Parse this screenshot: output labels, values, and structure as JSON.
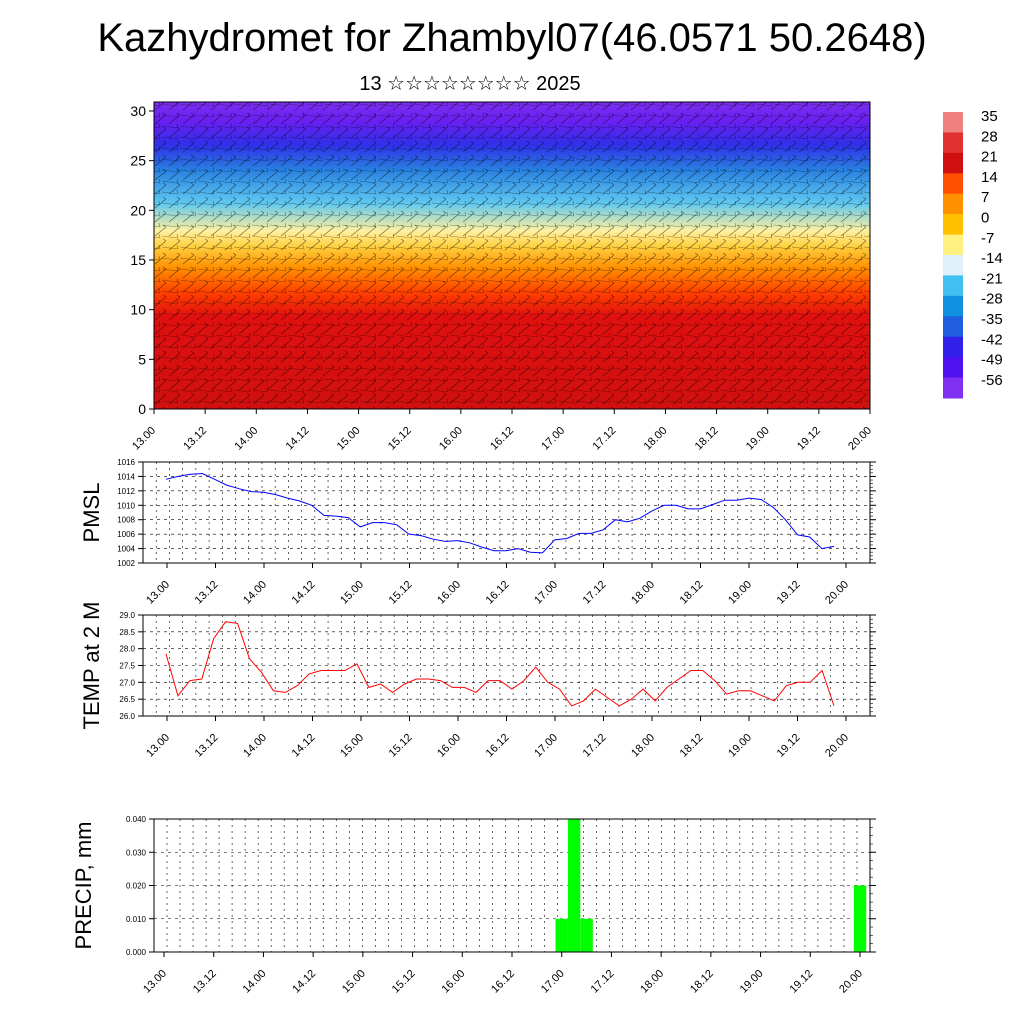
{
  "header": {
    "title": "Kazhydromet for Zhambyl07(46.0571 50.2648)",
    "subtitle": "13 ☆☆☆☆☆☆☆☆ 2025"
  },
  "colorbar": {
    "labels": [
      "35",
      "28",
      "21",
      "14",
      "7",
      "0",
      "-7",
      "-14",
      "-21",
      "-28",
      "-35",
      "-42",
      "-49",
      "-56"
    ],
    "colors": [
      "#f08080",
      "#e03030",
      "#d01010",
      "#ff5000",
      "#ff9000",
      "#ffc000",
      "#fff080",
      "#e0f0f8",
      "#40c0f0",
      "#1090e0",
      "#2060e0",
      "#3020e8",
      "#5010f0",
      "#8030f0"
    ]
  },
  "chart_data": [
    {
      "type": "heatmap",
      "title": "",
      "ylabel": "",
      "ylim": [
        0,
        30
      ],
      "y_ticks": [
        "0",
        "5",
        "10",
        "15",
        "20",
        "25",
        "30"
      ],
      "x_ticks": [
        "13.00",
        "13.12",
        "14.00",
        "14.12",
        "15.00",
        "15.12",
        "16.00",
        "16.12",
        "17.00",
        "17.12",
        "18.00",
        "18.12",
        "19.00",
        "19.12",
        "20.00"
      ],
      "colorbar_range": [
        -56,
        35
      ],
      "overlay": "wind barbs"
    },
    {
      "type": "line",
      "ylabel": "PMSL",
      "ylim": [
        1002,
        1016
      ],
      "y_ticks": [
        "1002",
        "1004",
        "1006",
        "1008",
        "1010",
        "1012",
        "1014",
        "1016"
      ],
      "x_ticks": [
        "13.00",
        "13.12",
        "14.00",
        "14.12",
        "15.00",
        "15.12",
        "16.00",
        "16.12",
        "17.00",
        "17.12",
        "18.00",
        "18.12",
        "19.00",
        "19.12",
        "20.00"
      ],
      "series": [
        {
          "color": "#0000ff",
          "values": [
            1013.6,
            1014.0,
            1014.3,
            1014.4,
            1013.6,
            1012.8,
            1012.3,
            1011.9,
            1011.8,
            1011.5,
            1011.0,
            1010.6,
            1010.0,
            1008.6,
            1008.5,
            1008.3,
            1007.0,
            1007.6,
            1007.6,
            1007.3,
            1006.0,
            1005.8,
            1005.3,
            1005.0,
            1005.1,
            1004.8,
            1004.2,
            1003.7,
            1003.7,
            1004.0,
            1003.5,
            1003.4,
            1005.2,
            1005.4,
            1006.1,
            1006.1,
            1006.6,
            1008.0,
            1007.7,
            1008.2,
            1009.2,
            1010.0,
            1010.0,
            1009.5,
            1009.5,
            1010.1,
            1010.7,
            1010.7,
            1011.0,
            1010.8,
            1009.7,
            1008.0,
            1005.9,
            1005.6,
            1004.0,
            1004.3
          ]
        }
      ]
    },
    {
      "type": "line",
      "ylabel": "TEMP at 2 M",
      "ylim": [
        26.0,
        29.0
      ],
      "y_ticks": [
        "26.0",
        "26.5",
        "27.0",
        "27.5",
        "28.0",
        "28.5",
        "29.0"
      ],
      "x_ticks": [
        "13.00",
        "13.12",
        "14.00",
        "14.12",
        "15.00",
        "15.12",
        "16.00",
        "16.12",
        "17.00",
        "17.12",
        "18.00",
        "18.12",
        "19.00",
        "19.12",
        "20.00"
      ],
      "series": [
        {
          "color": "#ff0000",
          "values": [
            27.85,
            26.6,
            27.05,
            27.1,
            28.3,
            28.8,
            28.75,
            27.7,
            27.3,
            26.75,
            26.7,
            26.9,
            27.25,
            27.35,
            27.35,
            27.35,
            27.55,
            26.85,
            26.95,
            26.7,
            26.95,
            27.1,
            27.1,
            27.05,
            26.85,
            26.85,
            26.7,
            27.05,
            27.05,
            26.8,
            27.05,
            27.45,
            27.0,
            26.8,
            26.3,
            26.45,
            26.8,
            26.55,
            26.3,
            26.5,
            26.8,
            26.45,
            26.85,
            27.1,
            27.35,
            27.35,
            27.05,
            26.65,
            26.75,
            26.75,
            26.6,
            26.45,
            26.9,
            27.0,
            27.0,
            27.35,
            26.3
          ]
        }
      ]
    },
    {
      "type": "bar",
      "ylabel": "PRECIP, mm",
      "ylim": [
        0,
        0.04
      ],
      "y_ticks": [
        "0.000",
        "0.010",
        "0.020",
        "0.030",
        "0.040"
      ],
      "x_ticks": [
        "13.00",
        "13.12",
        "14.00",
        "14.12",
        "15.00",
        "15.12",
        "16.00",
        "16.12",
        "17.00",
        "17.12",
        "18.00",
        "18.12",
        "19.00",
        "19.12",
        "20.00"
      ],
      "color": "#00ff00",
      "bars": [
        {
          "hour": 96,
          "value": 0.01
        },
        {
          "hour": 99,
          "value": 0.04
        },
        {
          "hour": 102,
          "value": 0.01
        },
        {
          "hour": 168,
          "value": 0.02
        }
      ]
    }
  ]
}
